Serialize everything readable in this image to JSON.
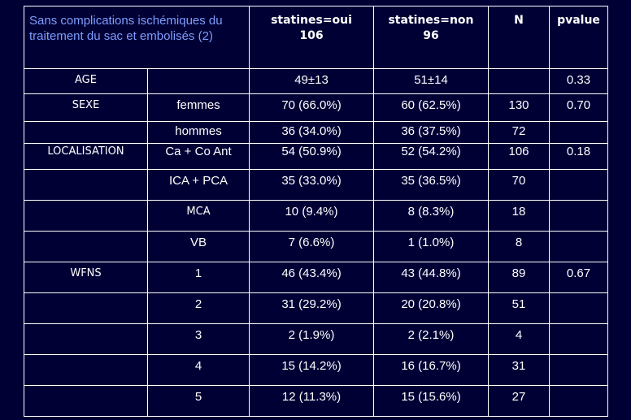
{
  "header": {
    "title": "Sans complications ischémiques du traitement du sac et embolisés (2)",
    "col_oui": "statines=oui\n106",
    "col_oui_l1": "statines=oui",
    "col_oui_l2": "106",
    "col_non_l1": "statines=non",
    "col_non_l2": "96",
    "col_n": "N",
    "col_p": "pvalue"
  },
  "rows": [
    {
      "label": "AGE",
      "sub": "",
      "oui": "49±13",
      "non": "51±14",
      "n": "",
      "p": "0.33"
    },
    {
      "label": "SEXE",
      "sub": "femmes",
      "oui": "70 (66.0%)",
      "non": "60 (62.5%)",
      "n": "130",
      "p": "0.70"
    },
    {
      "label": "",
      "sub": "hommes",
      "oui": "36 (34.0%)",
      "non": "36 (37.5%)",
      "n": "72",
      "p": ""
    },
    {
      "label": "LOCALISATION",
      "sub": "Ca + Co Ant",
      "oui": "54 (50.9%)",
      "non": "52 (54.2%)",
      "n": "106",
      "p": "0.18"
    },
    {
      "label": "",
      "sub": "ICA + PCA",
      "oui": "35 (33.0%)",
      "non": "35 (36.5%)",
      "n": "70",
      "p": ""
    },
    {
      "label": "",
      "sub": "MCA",
      "oui": "10 (9.4%)",
      "non": "8 (8.3%)",
      "n": "18",
      "p": ""
    },
    {
      "label": "",
      "sub": "VB",
      "oui": "7 (6.6%)",
      "non": "1 (1.0%)",
      "n": "8",
      "p": ""
    },
    {
      "label": "WFNS",
      "sub": "1",
      "oui": "46 (43.4%)",
      "non": "43 (44.8%)",
      "n": "89",
      "p": "0.67"
    },
    {
      "label": "",
      "sub": "2",
      "oui": "31 (29.2%)",
      "non": "20 (20.8%)",
      "n": "51",
      "p": ""
    },
    {
      "label": "",
      "sub": "3",
      "oui": "2 (1.9%)",
      "non": "2 (2.1%)",
      "n": "4",
      "p": ""
    },
    {
      "label": "",
      "sub": "4",
      "oui": "15 (14.2%)",
      "non": "16 (16.7%)",
      "n": "31",
      "p": ""
    },
    {
      "label": "",
      "sub": "5",
      "oui": "12 (11.3%)",
      "non": "15 (15.6%)",
      "n": "27",
      "p": ""
    }
  ],
  "colors": {
    "background": "#000035",
    "title_text": "#7f9eff",
    "text": "#ffffff",
    "border": "#ffffff"
  }
}
